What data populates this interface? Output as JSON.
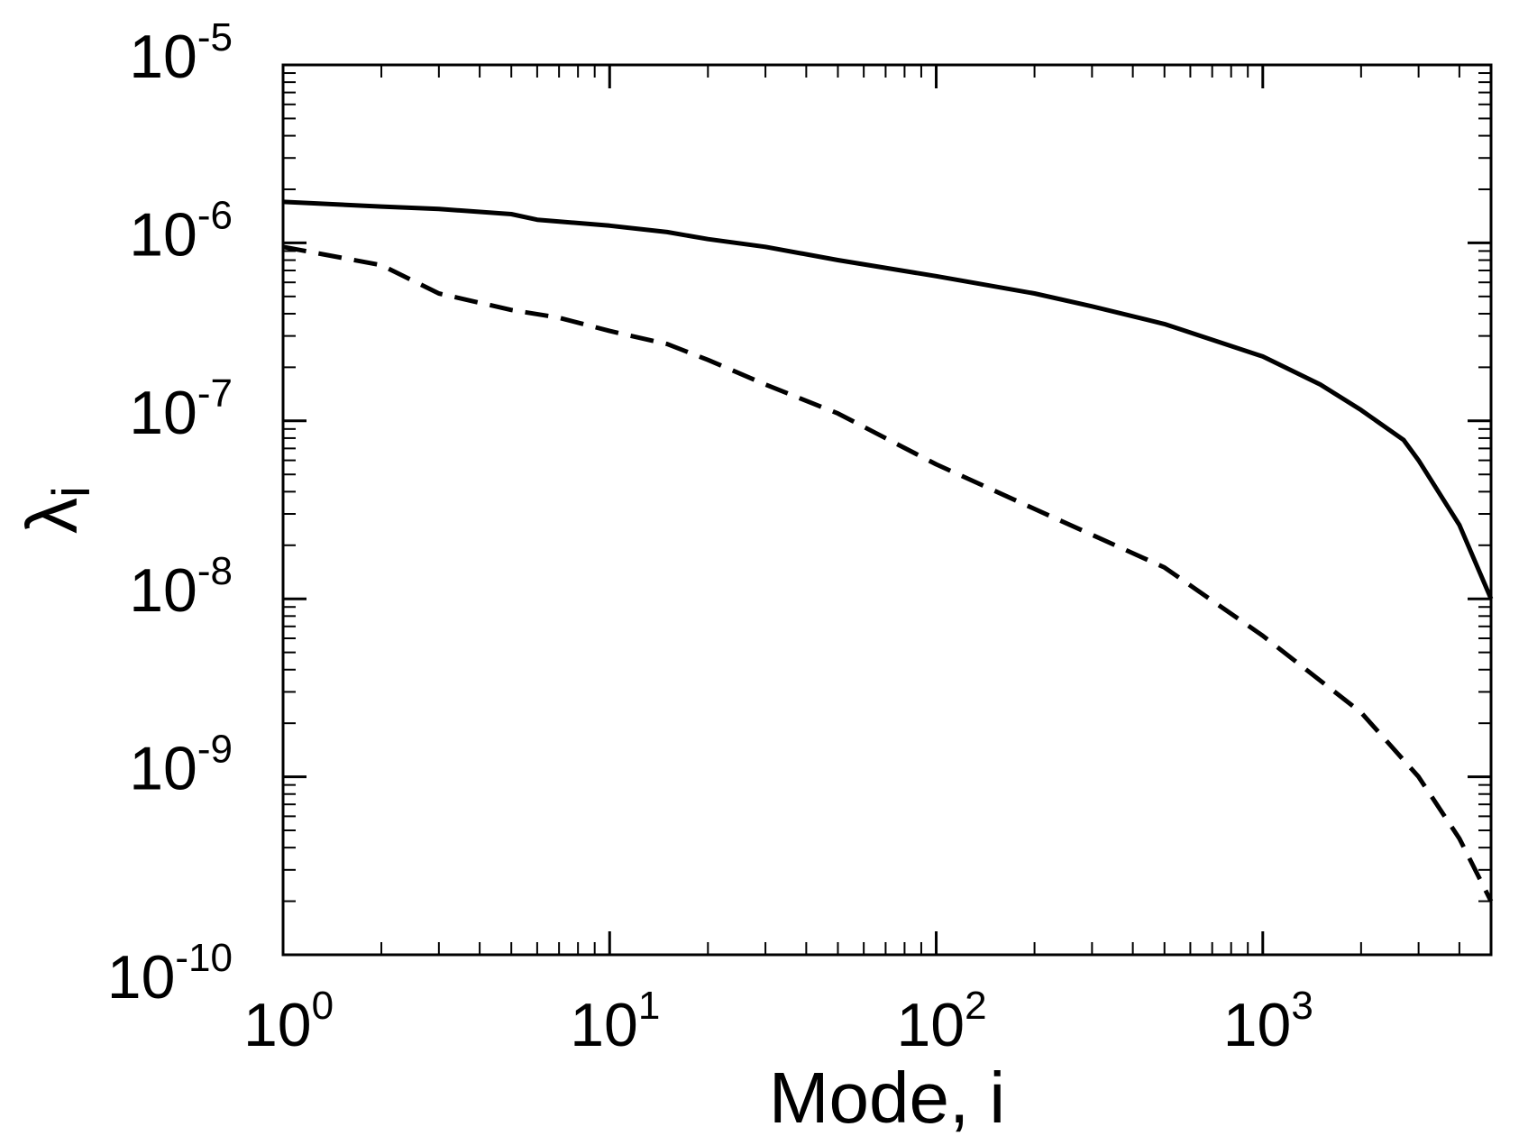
{
  "chart_data": {
    "type": "line",
    "title": "",
    "xlabel": "Mode, i",
    "ylabel": "λ",
    "ylabel_subscript": "i",
    "xscale": "log",
    "yscale": "log",
    "xlim": [
      1,
      5000
    ],
    "ylim": [
      1e-10,
      1e-05
    ],
    "grid": false,
    "legend": "none",
    "x_tick_labels": [
      {
        "value": 1,
        "base": "10",
        "exp": "0"
      },
      {
        "value": 10,
        "base": "10",
        "exp": "1"
      },
      {
        "value": 100,
        "base": "10",
        "exp": "2"
      },
      {
        "value": 1000,
        "base": "10",
        "exp": "3"
      }
    ],
    "y_tick_labels": [
      {
        "value": 1e-05,
        "base": "10",
        "exp": "-5"
      },
      {
        "value": 1e-06,
        "base": "10",
        "exp": "-6"
      },
      {
        "value": 1e-07,
        "base": "10",
        "exp": "-7"
      },
      {
        "value": 1e-08,
        "base": "10",
        "exp": "-8"
      },
      {
        "value": 1e-09,
        "base": "10",
        "exp": "-9"
      },
      {
        "value": 1e-10,
        "base": "10",
        "exp": "-10"
      }
    ],
    "series": [
      {
        "style": "solid",
        "color": "#000000",
        "x": [
          1,
          2,
          3,
          5,
          6,
          10,
          15,
          20,
          30,
          50,
          100,
          200,
          300,
          500,
          1000,
          1500,
          2000,
          2700,
          3000,
          4000,
          5000
        ],
        "y": [
          1.7e-06,
          1.6e-06,
          1.55e-06,
          1.45e-06,
          1.35e-06,
          1.25e-06,
          1.15e-06,
          1.05e-06,
          9.5e-07,
          8e-07,
          6.5e-07,
          5.2e-07,
          4.4e-07,
          3.5e-07,
          2.3e-07,
          1.6e-07,
          1.15e-07,
          7.8e-08,
          6e-08,
          2.6e-08,
          1e-08
        ]
      },
      {
        "style": "dashed",
        "color": "#000000",
        "x": [
          1,
          2,
          3,
          5,
          7,
          10,
          15,
          20,
          30,
          50,
          100,
          200,
          500,
          1000,
          2000,
          3000,
          4000,
          5000
        ],
        "y": [
          9.5e-07,
          7.5e-07,
          5.2e-07,
          4.2e-07,
          3.8e-07,
          3.2e-07,
          2.7e-07,
          2.2e-07,
          1.6e-07,
          1.1e-07,
          5.7e-08,
          3.2e-08,
          1.5e-08,
          6.2e-09,
          2.3e-09,
          1e-09,
          4.5e-10,
          2e-10
        ]
      }
    ]
  }
}
